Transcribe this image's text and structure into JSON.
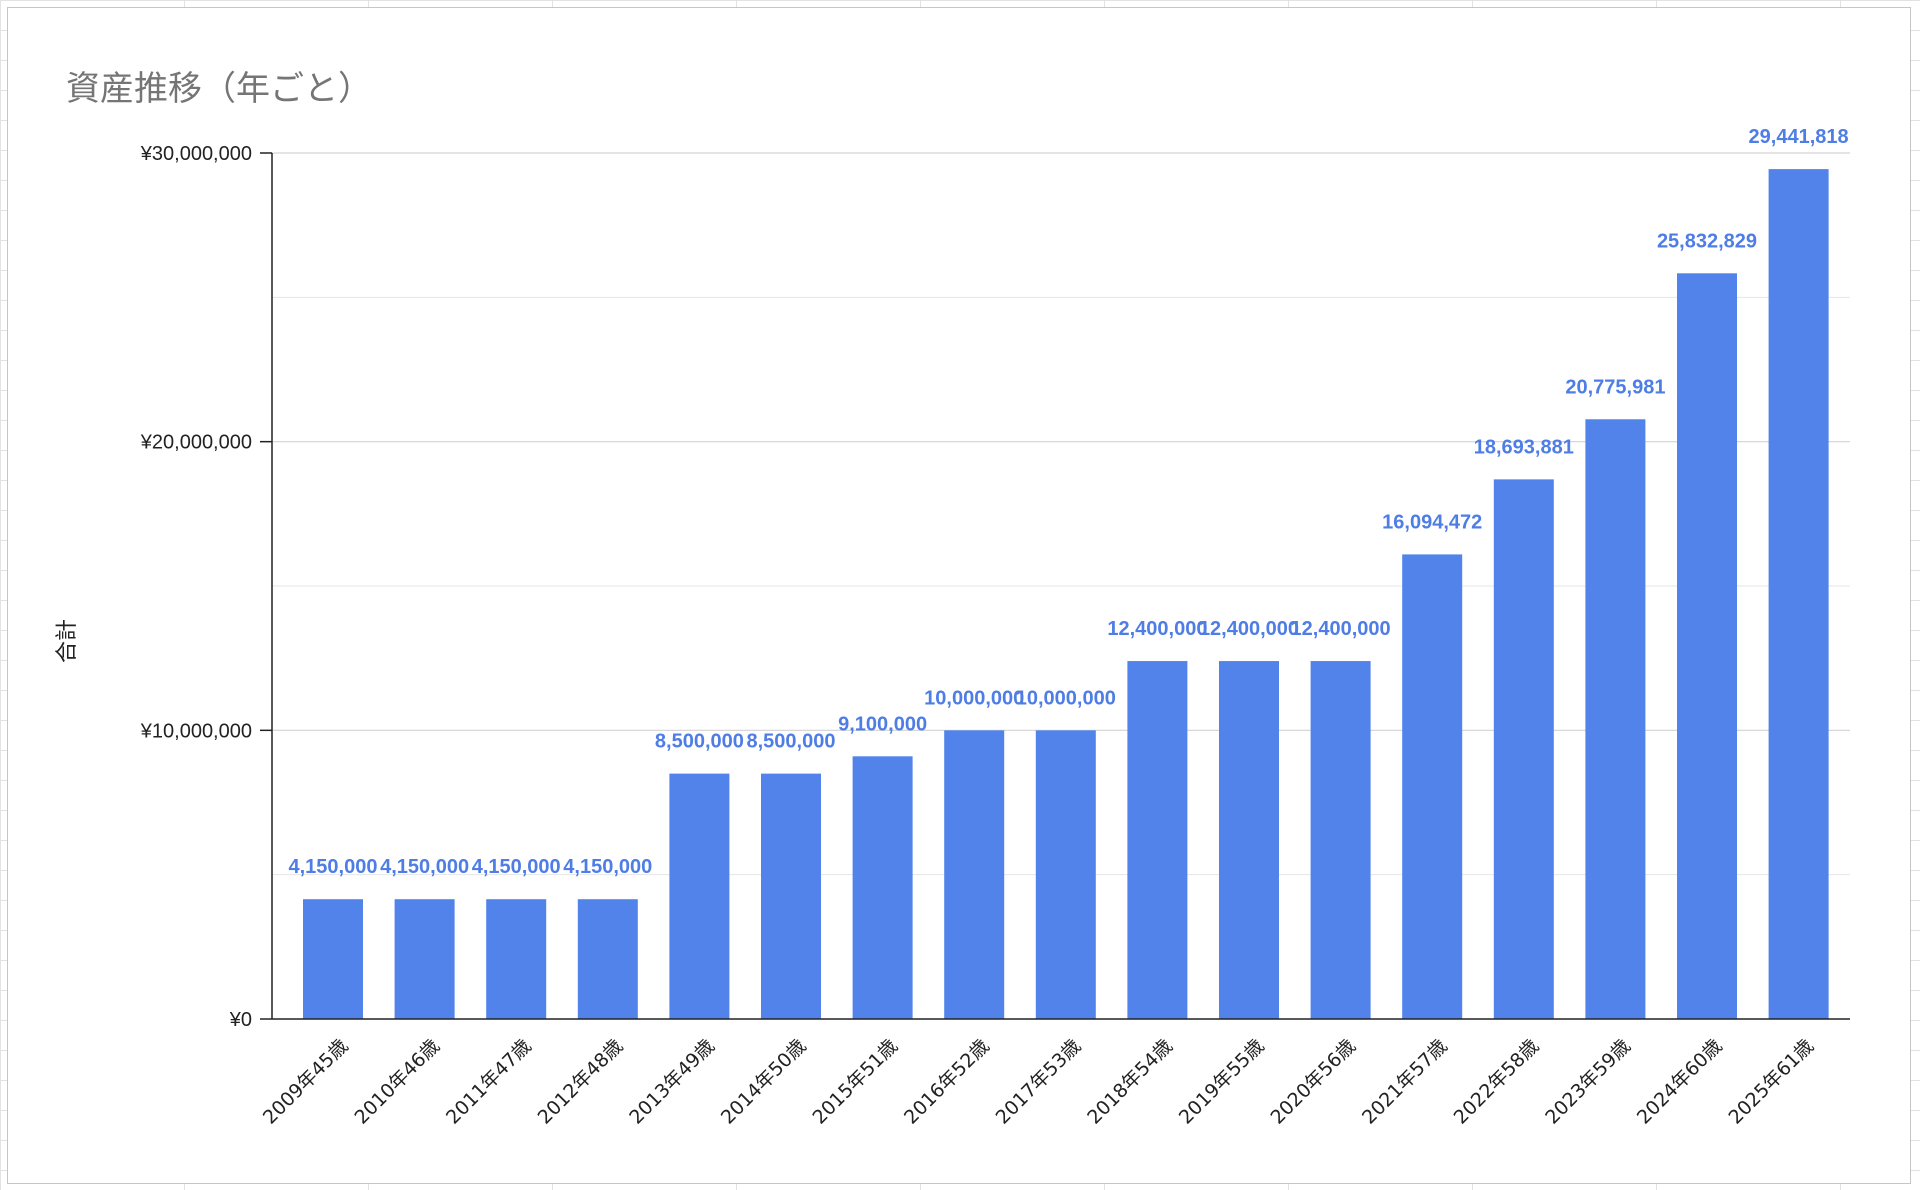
{
  "chart_data": {
    "type": "bar",
    "title": "資産推移（年ごと）",
    "xlabel": "",
    "ylabel": "合計",
    "ylim": [
      0,
      30000000
    ],
    "y_ticks": [
      {
        "value": 0,
        "label": "¥0"
      },
      {
        "value": 10000000,
        "label": "¥10,000,000"
      },
      {
        "value": 20000000,
        "label": "¥20,000,000"
      },
      {
        "value": 30000000,
        "label": "¥30,000,000"
      }
    ],
    "minor_gridlines": [
      5000000,
      15000000,
      25000000
    ],
    "grid": true,
    "legend": "none",
    "categories": [
      "2009年45歳",
      "2010年46歳",
      "2011年47歳",
      "2012年48歳",
      "2013年49歳",
      "2014年50歳",
      "2015年51歳",
      "2016年52歳",
      "2017年53歳",
      "2018年54歳",
      "2019年55歳",
      "2020年56歳",
      "2021年57歳",
      "2022年58歳",
      "2023年59歳",
      "2024年60歳",
      "2025年61歳"
    ],
    "values": [
      4150000,
      4150000,
      4150000,
      4150000,
      8500000,
      8500000,
      9100000,
      10000000,
      10000000,
      12400000,
      12400000,
      12400000,
      16094472,
      18693881,
      20775981,
      25832829,
      29441818
    ],
    "data_labels": [
      "4,150,000",
      "4,150,000",
      "4,150,000",
      "4,150,000",
      "8,500,000",
      "8,500,000",
      "9,100,000",
      "10,000,000",
      "10,000,000",
      "12,400,000",
      "12,400,000",
      "12,400,000",
      "16,094,472",
      "18,693,881",
      "20,775,981",
      "25,832,829",
      "29,441,818"
    ]
  },
  "colors": {
    "bar": "#5183ea",
    "data_label": "#4e7de6",
    "gridline": "#d3d3d3",
    "axis": "#222222",
    "title": "#757575"
  }
}
